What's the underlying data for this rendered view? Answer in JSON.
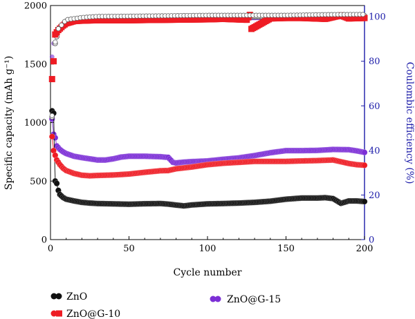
{
  "chart_data": {
    "type": "scatter",
    "title": "",
    "xlabel": "Cycle number",
    "ylabel": "Specific capacity (mAh g⁻¹)",
    "y2label": "Coulombic efficiency (%)",
    "xlim": [
      0,
      200
    ],
    "ylim": [
      0,
      2000
    ],
    "y2lim": [
      0,
      105
    ],
    "xticks": [
      "0",
      "50",
      "100",
      "150",
      "200"
    ],
    "yticks": [
      "0",
      "500",
      "1000",
      "1500",
      "2000"
    ],
    "y2ticks": [
      "0",
      "20",
      "40",
      "60",
      "80",
      "100"
    ],
    "grid": false,
    "legend_position": "bottom",
    "series": [
      {
        "name": "ZnO",
        "color": "#111111",
        "axis": "left",
        "capacity": [
          [
            1,
            1100
          ],
          [
            2,
            1080
          ],
          [
            3,
            500
          ],
          [
            4,
            480
          ],
          [
            5,
            420
          ],
          [
            6,
            385
          ],
          [
            8,
            360
          ],
          [
            10,
            345
          ],
          [
            15,
            330
          ],
          [
            20,
            318
          ],
          [
            25,
            312
          ],
          [
            30,
            308
          ],
          [
            40,
            305
          ],
          [
            50,
            302
          ],
          [
            60,
            306
          ],
          [
            70,
            308
          ],
          [
            75,
            303
          ],
          [
            80,
            295
          ],
          [
            85,
            288
          ],
          [
            90,
            296
          ],
          [
            100,
            305
          ],
          [
            110,
            308
          ],
          [
            120,
            312
          ],
          [
            130,
            318
          ],
          [
            140,
            328
          ],
          [
            150,
            345
          ],
          [
            160,
            355
          ],
          [
            170,
            355
          ],
          [
            175,
            358
          ],
          [
            180,
            350
          ],
          [
            185,
            310
          ],
          [
            190,
            330
          ],
          [
            195,
            330
          ],
          [
            200,
            325
          ]
        ],
        "efficiency": [
          [
            1,
            55
          ],
          [
            2,
            80
          ],
          [
            3,
            88
          ],
          [
            5,
            94
          ],
          [
            10,
            98
          ],
          [
            20,
            99
          ],
          [
            30,
            99.5
          ],
          [
            50,
            99.6
          ],
          [
            75,
            99.8
          ],
          [
            100,
            100
          ],
          [
            125,
            100
          ],
          [
            150,
            100
          ],
          [
            175,
            100.3
          ],
          [
            200,
            100.4
          ]
        ]
      },
      {
        "name": "ZnO@G-10",
        "color": "#ee1c24",
        "axis": "left",
        "capacity": [
          [
            1,
            880
          ],
          [
            2,
            760
          ],
          [
            3,
            720
          ],
          [
            4,
            680
          ],
          [
            6,
            640
          ],
          [
            8,
            610
          ],
          [
            10,
            590
          ],
          [
            15,
            565
          ],
          [
            20,
            550
          ],
          [
            25,
            545
          ],
          [
            30,
            548
          ],
          [
            40,
            552
          ],
          [
            50,
            560
          ],
          [
            60,
            575
          ],
          [
            70,
            588
          ],
          [
            75,
            590
          ],
          [
            80,
            605
          ],
          [
            90,
            620
          ],
          [
            100,
            640
          ],
          [
            110,
            652
          ],
          [
            120,
            660
          ],
          [
            130,
            668
          ],
          [
            140,
            668
          ],
          [
            150,
            668
          ],
          [
            160,
            672
          ],
          [
            170,
            675
          ],
          [
            180,
            680
          ],
          [
            190,
            650
          ],
          [
            195,
            640
          ],
          [
            200,
            635
          ]
        ],
        "efficiency": [
          [
            1,
            72
          ],
          [
            2,
            80
          ],
          [
            3,
            92
          ],
          [
            5,
            94
          ],
          [
            8,
            96
          ],
          [
            10,
            97
          ],
          [
            15,
            98
          ],
          [
            20,
            98.2
          ],
          [
            30,
            98.4
          ],
          [
            50,
            98.4
          ],
          [
            75,
            98.6
          ],
          [
            100,
            98.8
          ],
          [
            110,
            99
          ],
          [
            125,
            98.6
          ],
          [
            127,
            100.8
          ],
          [
            128,
            94.5
          ],
          [
            140,
            99.2
          ],
          [
            150,
            99.4
          ],
          [
            160,
            99.4
          ],
          [
            175,
            99
          ],
          [
            185,
            100.6
          ],
          [
            190,
            99.2
          ],
          [
            200,
            99.4
          ]
        ]
      },
      {
        "name": "ZnO@G-15",
        "color": "#7c2fd6",
        "axis": "left",
        "capacity": [
          [
            1,
            1030
          ],
          [
            2,
            900
          ],
          [
            3,
            870
          ],
          [
            4,
            800
          ],
          [
            6,
            770
          ],
          [
            8,
            750
          ],
          [
            10,
            735
          ],
          [
            15,
            712
          ],
          [
            20,
            700
          ],
          [
            25,
            690
          ],
          [
            30,
            680
          ],
          [
            35,
            680
          ],
          [
            40,
            690
          ],
          [
            45,
            705
          ],
          [
            50,
            712
          ],
          [
            60,
            712
          ],
          [
            70,
            708
          ],
          [
            75,
            702
          ],
          [
            78,
            660
          ],
          [
            80,
            655
          ],
          [
            85,
            662
          ],
          [
            90,
            666
          ],
          [
            100,
            672
          ],
          [
            110,
            686
          ],
          [
            120,
            698
          ],
          [
            130,
            718
          ],
          [
            140,
            742
          ],
          [
            150,
            760
          ],
          [
            160,
            760
          ],
          [
            170,
            762
          ],
          [
            180,
            770
          ],
          [
            190,
            768
          ],
          [
            195,
            758
          ],
          [
            200,
            745
          ]
        ],
        "efficiency": [
          [
            1,
            82
          ],
          [
            2,
            88
          ],
          [
            3,
            92
          ],
          [
            5,
            94
          ],
          [
            8,
            96
          ],
          [
            10,
            97
          ],
          [
            15,
            97.5
          ],
          [
            20,
            98
          ],
          [
            30,
            98.5
          ],
          [
            50,
            98.8
          ],
          [
            75,
            99
          ],
          [
            100,
            99.2
          ],
          [
            125,
            99.4
          ],
          [
            150,
            99.6
          ],
          [
            175,
            99.8
          ],
          [
            200,
            99.9
          ]
        ]
      }
    ]
  }
}
